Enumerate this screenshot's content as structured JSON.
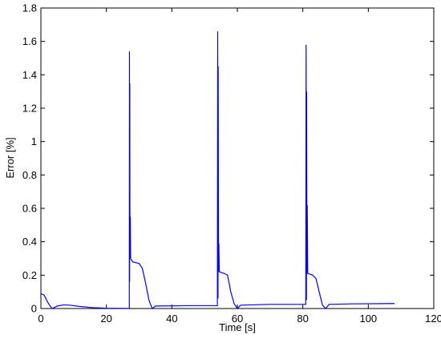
{
  "chart_data": {
    "type": "line",
    "xlabel": "Time [s]",
    "ylabel": "Error [%]",
    "x": [
      0,
      1,
      2,
      3,
      3.5,
      4,
      5,
      7,
      9,
      12,
      16,
      20,
      26.9,
      27,
      27.05,
      27.1,
      27.15,
      27.2,
      27.3,
      27.4,
      28,
      30,
      31,
      32,
      33,
      34,
      35,
      45,
      53.9,
      54,
      54.1,
      54.15,
      54.25,
      54.35,
      54.5,
      56,
      57,
      58,
      59,
      60,
      61,
      70,
      80.9,
      81,
      81.1,
      81.15,
      81.25,
      81.35,
      81.5,
      83,
      84,
      85,
      86,
      87,
      88,
      95,
      108
    ],
    "series": [
      {
        "color": "#0000ff",
        "values": [
          0.09,
          0.08,
          0.04,
          0.01,
          0.0,
          0.005,
          0.015,
          0.022,
          0.02,
          0.012,
          0.005,
          0.002,
          0.001,
          0.0,
          1.54,
          0.16,
          1.35,
          0.3,
          0.55,
          0.3,
          0.28,
          0.27,
          0.24,
          0.15,
          0.05,
          0.0,
          0.015,
          0.017,
          0.017,
          1.66,
          0.06,
          1.45,
          0.22,
          0.39,
          0.22,
          0.21,
          0.2,
          0.1,
          0.03,
          0.0,
          0.02,
          0.025,
          0.025,
          1.58,
          0.05,
          1.3,
          0.21,
          0.62,
          0.21,
          0.2,
          0.18,
          0.1,
          0.02,
          0.0,
          0.025,
          0.028,
          0.03
        ]
      }
    ],
    "xlim": [
      0,
      120
    ],
    "ylim": [
      0,
      1.8
    ],
    "xticks": [
      0,
      20,
      40,
      60,
      80,
      100,
      120
    ],
    "yticks": [
      0,
      0.2,
      0.4,
      0.6,
      0.8,
      1,
      1.2,
      1.4,
      1.6,
      1.8
    ]
  }
}
